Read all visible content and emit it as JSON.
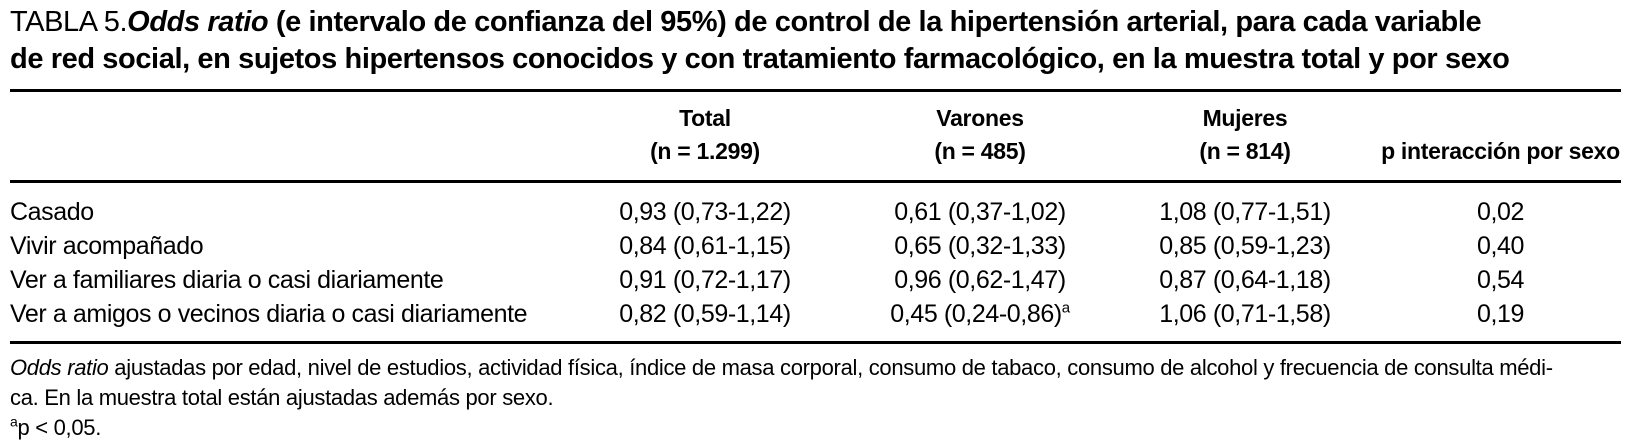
{
  "title": {
    "label": "TABLA 5.",
    "italic": "Odds ratio",
    "rest_line1": " (e intervalo de confianza del 95%) de control de la hipertensión arterial, para cada variable",
    "line2": "de red social, en sujetos hipertensos conocidos y con tratamiento farmacológico, en la muestra total y por sexo"
  },
  "table": {
    "columns": [
      {
        "name": "Total",
        "n": "(n = 1.299)"
      },
      {
        "name": "Varones",
        "n": "(n = 485)"
      },
      {
        "name": "Mujeres",
        "n": "(n = 814)"
      },
      {
        "name": "p interacción por sexo"
      }
    ],
    "rows": [
      {
        "label": "Casado",
        "total": "0,93 (0,73-1,22)",
        "varones": "0,61 (0,37-1,02)",
        "varones_sup": "",
        "mujeres": "1,08 (0,77-1,51)",
        "p": "0,02"
      },
      {
        "label": "Vivir acompañado",
        "total": "0,84 (0,61-1,15)",
        "varones": "0,65 (0,32-1,33)",
        "varones_sup": "",
        "mujeres": "0,85 (0,59-1,23)",
        "p": "0,40"
      },
      {
        "label": "Ver a familiares diaria o casi diariamente",
        "total": "0,91 (0,72-1,17)",
        "varones": "0,96 (0,62-1,47)",
        "varones_sup": "",
        "mujeres": "0,87 (0,64-1,18)",
        "p": "0,54"
      },
      {
        "label": "Ver a amigos o vecinos diaria o casi diariamente",
        "total": "0,82 (0,59-1,14)",
        "varones": "0,45 (0,24-0,86)",
        "varones_sup": "a",
        "mujeres": "1,06 (0,71-1,58)",
        "p": "0,19"
      }
    ]
  },
  "footnotes": {
    "adjust_italic": "Odds ratio",
    "adjust_line1_rest": " ajustadas por edad, nivel de estudios, actividad física, índice de masa corporal, consumo de tabaco, consumo de alcohol y frecuencia de consulta médi-",
    "adjust_line2": "ca. En la muestra total están ajustadas además por sexo.",
    "sig_sup": "a",
    "sig_text": "p < 0,05."
  }
}
